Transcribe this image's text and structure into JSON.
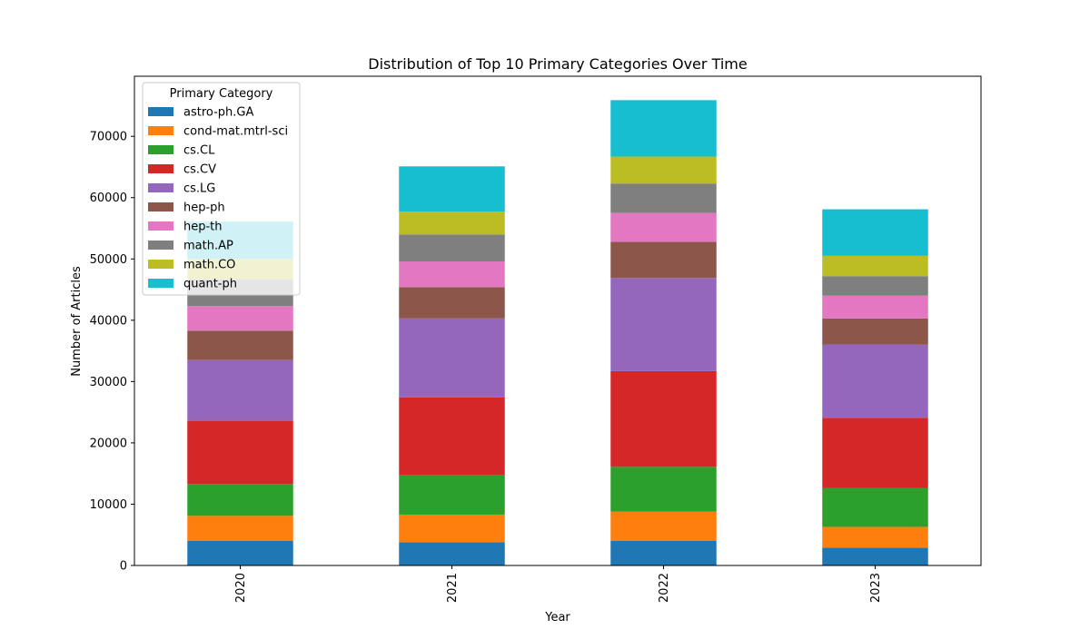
{
  "chart_data": {
    "type": "bar",
    "stacked": true,
    "title": "Distribution of Top 10 Primary Categories Over Time",
    "xlabel": "Year",
    "ylabel": "Number of Articles",
    "categories": [
      "2020",
      "2021",
      "2022",
      "2023"
    ],
    "ylim": [
      0,
      80000
    ],
    "yticks": [
      0,
      10000,
      20000,
      30000,
      40000,
      50000,
      60000,
      70000
    ],
    "grid": false,
    "legend": {
      "title": "Primary Category",
      "placement": "upper-left",
      "semi_transparent": true
    },
    "series": [
      {
        "name": "astro-ph.GA",
        "color": "#1f77b4",
        "values": [
          4000,
          3800,
          4000,
          2900
        ]
      },
      {
        "name": "cond-mat.mtrl-sci",
        "color": "#ff7f0e",
        "values": [
          4100,
          4500,
          4800,
          3400
        ]
      },
      {
        "name": "cs.CL",
        "color": "#2ca02c",
        "values": [
          5200,
          6500,
          7300,
          6300
        ]
      },
      {
        "name": "cs.CV",
        "color": "#d62728",
        "values": [
          10300,
          12600,
          15600,
          11500
        ]
      },
      {
        "name": "cs.LG",
        "color": "#9467bd",
        "values": [
          9900,
          12900,
          15200,
          11900
        ]
      },
      {
        "name": "hep-ph",
        "color": "#8c564b",
        "values": [
          4800,
          5100,
          5900,
          4300
        ]
      },
      {
        "name": "hep-th",
        "color": "#e377c2",
        "values": [
          4000,
          4200,
          4700,
          3700
        ]
      },
      {
        "name": "math.AP",
        "color": "#7f7f7f",
        "values": [
          4400,
          4400,
          4800,
          3200
        ]
      },
      {
        "name": "math.CO",
        "color": "#bcbd22",
        "values": [
          3300,
          3700,
          4400,
          3300
        ]
      },
      {
        "name": "quant-ph",
        "color": "#17becf",
        "values": [
          6100,
          7400,
          9200,
          7600
        ]
      }
    ]
  }
}
